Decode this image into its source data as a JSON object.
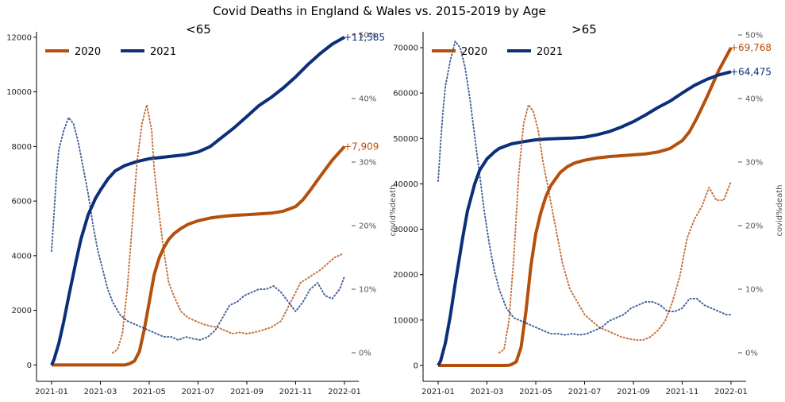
{
  "title": "Covid Deaths in England & Wales vs. 2015-2019 by Age",
  "colors": {
    "y2020": "#b5500c",
    "y2021": "#0c2f7a"
  },
  "chart_data": [
    {
      "type": "line",
      "title": "<65",
      "xlabel": "",
      "ylabel_right": "covid%death",
      "x_ticks": [
        "2021-01",
        "2021-03",
        "2021-05",
        "2021-07",
        "2021-09",
        "2021-11",
        "2022-01"
      ],
      "x_range_months": [
        0,
        12
      ],
      "ylim_left": [
        -600,
        12200
      ],
      "y_ticks_left": [
        "0",
        "2000",
        "4000",
        "6000",
        "8000",
        "10000",
        "12000"
      ],
      "ylim_right": [
        -0.045,
        0.505
      ],
      "y_ticks_right": [
        "0%",
        "10%",
        "20%",
        "30%",
        "40%",
        "50%"
      ],
      "legend": [
        "2020",
        "2021"
      ],
      "end_labels": {
        "y2020": "+7,909",
        "y2021": "+11,585"
      },
      "series": [
        {
          "name": "2020",
          "axis": "left",
          "style": "solid",
          "x": [
            0,
            2.0,
            2.4,
            2.6,
            2.8,
            3.0,
            3.2,
            3.4,
            3.6,
            3.8,
            4.0,
            4.2,
            4.4,
            4.6,
            4.8,
            5.0,
            5.3,
            5.6,
            6.0,
            6.5,
            7.0,
            7.5,
            8.0,
            8.5,
            9.0,
            9.5,
            10.0,
            10.3,
            10.6,
            11.0,
            11.5,
            12.0
          ],
          "values": [
            0,
            0,
            0,
            0,
            0,
            0,
            50,
            150,
            500,
            1300,
            2300,
            3300,
            3900,
            4300,
            4600,
            4800,
            5000,
            5150,
            5280,
            5380,
            5440,
            5480,
            5500,
            5530,
            5560,
            5630,
            5800,
            6050,
            6400,
            6900,
            7500,
            8000
          ]
        },
        {
          "name": "2021",
          "axis": "left",
          "style": "solid",
          "x": [
            0,
            0.1,
            0.3,
            0.5,
            0.7,
            1.0,
            1.2,
            1.5,
            1.8,
            2.0,
            2.3,
            2.6,
            3.0,
            3.5,
            4.0,
            4.5,
            5.0,
            5.5,
            6.0,
            6.5,
            7.0,
            7.5,
            8.0,
            8.5,
            9.0,
            9.5,
            10.0,
            10.5,
            11.0,
            11.5,
            12.0
          ],
          "values": [
            0,
            200,
            800,
            1600,
            2500,
            3800,
            4600,
            5500,
            6100,
            6400,
            6800,
            7100,
            7300,
            7450,
            7550,
            7600,
            7650,
            7700,
            7800,
            8000,
            8350,
            8700,
            9100,
            9500,
            9800,
            10150,
            10550,
            11000,
            11400,
            11750,
            12000
          ]
        },
        {
          "name": "2020 covid%death",
          "axis": "right",
          "style": "dotted",
          "x": [
            2.5,
            2.7,
            2.9,
            3.1,
            3.3,
            3.5,
            3.7,
            3.9,
            4.1,
            4.2,
            4.4,
            4.6,
            4.8,
            5.0,
            5.3,
            5.6,
            5.9,
            6.2,
            6.5,
            6.8,
            7.1,
            7.4,
            7.7,
            8.0,
            8.3,
            8.6,
            9.0,
            9.4,
            9.8,
            10.2,
            10.6,
            11.0,
            11.3,
            11.6,
            11.9
          ],
          "values": [
            0.0,
            0.005,
            0.03,
            0.1,
            0.2,
            0.3,
            0.36,
            0.39,
            0.35,
            0.29,
            0.22,
            0.16,
            0.11,
            0.09,
            0.065,
            0.055,
            0.05,
            0.045,
            0.042,
            0.04,
            0.035,
            0.03,
            0.032,
            0.03,
            0.032,
            0.035,
            0.04,
            0.05,
            0.08,
            0.11,
            0.12,
            0.13,
            0.14,
            0.15,
            0.155
          ]
        },
        {
          "name": "2021 covid%death",
          "axis": "right",
          "style": "dotted",
          "x": [
            0,
            0.1,
            0.2,
            0.3,
            0.5,
            0.7,
            0.9,
            1.1,
            1.3,
            1.5,
            1.7,
            1.9,
            2.1,
            2.3,
            2.5,
            2.8,
            3.1,
            3.4,
            3.7,
            4.0,
            4.3,
            4.6,
            4.9,
            5.2,
            5.5,
            5.8,
            6.1,
            6.4,
            6.7,
            7.0,
            7.3,
            7.6,
            7.9,
            8.2,
            8.5,
            8.8,
            9.1,
            9.4,
            9.7,
            10.0,
            10.3,
            10.6,
            10.9,
            11.2,
            11.5,
            11.8,
            12.0
          ],
          "values": [
            0.16,
            0.22,
            0.28,
            0.32,
            0.35,
            0.37,
            0.36,
            0.33,
            0.29,
            0.25,
            0.2,
            0.16,
            0.13,
            0.1,
            0.08,
            0.06,
            0.05,
            0.045,
            0.04,
            0.035,
            0.03,
            0.025,
            0.025,
            0.02,
            0.025,
            0.022,
            0.02,
            0.025,
            0.035,
            0.055,
            0.075,
            0.08,
            0.09,
            0.095,
            0.1,
            0.1,
            0.105,
            0.095,
            0.08,
            0.065,
            0.08,
            0.1,
            0.11,
            0.09,
            0.085,
            0.1,
            0.12
          ]
        }
      ]
    },
    {
      "type": "line",
      "title": ">65",
      "xlabel": "",
      "ylabel_right": "covid%death",
      "x_ticks": [
        "2021-01",
        "2021-03",
        "2021-05",
        "2021-07",
        "2021-09",
        "2021-11",
        "2022-01"
      ],
      "x_range_months": [
        0,
        12
      ],
      "ylim_left": [
        -3500,
        73500
      ],
      "y_ticks_left": [
        "0",
        "10000",
        "20000",
        "30000",
        "40000",
        "50000",
        "60000",
        "70000"
      ],
      "ylim_right": [
        -0.045,
        0.505
      ],
      "y_ticks_right": [
        "0%",
        "10%",
        "20%",
        "30%",
        "40%",
        "50%"
      ],
      "legend": [
        "2020",
        "2021"
      ],
      "end_labels": {
        "y2020": "+69,768",
        "y2021": "+64,475"
      },
      "series": [
        {
          "name": "2020",
          "axis": "left",
          "style": "solid",
          "x": [
            0,
            2.0,
            2.5,
            2.7,
            2.9,
            3.0,
            3.2,
            3.4,
            3.6,
            3.8,
            4.0,
            4.2,
            4.4,
            4.6,
            4.8,
            5.0,
            5.3,
            5.6,
            6.0,
            6.5,
            7.0,
            7.5,
            8.0,
            8.5,
            9.0,
            9.5,
            10.0,
            10.3,
            10.6,
            11.0,
            11.5,
            12.0
          ],
          "values": [
            0,
            0,
            0,
            0,
            50,
            200,
            800,
            4000,
            12000,
            22000,
            29000,
            33500,
            37000,
            39500,
            41000,
            42500,
            43800,
            44600,
            45200,
            45700,
            46000,
            46200,
            46400,
            46600,
            47000,
            47800,
            49500,
            51500,
            54500,
            59000,
            65000,
            70000
          ]
        },
        {
          "name": "2021",
          "axis": "left",
          "style": "solid",
          "x": [
            0,
            0.1,
            0.3,
            0.5,
            0.7,
            1.0,
            1.2,
            1.5,
            1.7,
            2.0,
            2.3,
            2.5,
            2.8,
            3.0,
            3.5,
            4.0,
            4.5,
            5.0,
            5.5,
            6.0,
            6.5,
            7.0,
            7.5,
            8.0,
            8.5,
            9.0,
            9.5,
            10.0,
            10.5,
            11.0,
            11.5,
            12.0
          ],
          "values": [
            0,
            1000,
            5000,
            11000,
            18000,
            28000,
            34000,
            40000,
            43000,
            45500,
            47000,
            47800,
            48400,
            48800,
            49300,
            49700,
            49900,
            50000,
            50100,
            50300,
            50800,
            51500,
            52500,
            53700,
            55200,
            56800,
            58200,
            60000,
            61700,
            63000,
            64000,
            64700
          ]
        },
        {
          "name": "2020 covid%death",
          "axis": "right",
          "style": "dotted",
          "x": [
            2.5,
            2.7,
            2.9,
            3.1,
            3.3,
            3.5,
            3.7,
            3.9,
            4.1,
            4.3,
            4.5,
            4.7,
            4.9,
            5.1,
            5.4,
            5.7,
            6.0,
            6.3,
            6.6,
            6.9,
            7.2,
            7.5,
            7.8,
            8.1,
            8.4,
            8.7,
            9.0,
            9.3,
            9.6,
            9.9,
            10.2,
            10.5,
            10.8,
            11.1,
            11.4,
            11.7,
            12.0
          ],
          "values": [
            0.0,
            0.005,
            0.05,
            0.15,
            0.28,
            0.36,
            0.39,
            0.38,
            0.35,
            0.3,
            0.26,
            0.22,
            0.18,
            0.14,
            0.1,
            0.08,
            0.06,
            0.05,
            0.04,
            0.035,
            0.03,
            0.025,
            0.022,
            0.02,
            0.02,
            0.025,
            0.035,
            0.05,
            0.08,
            0.12,
            0.18,
            0.21,
            0.23,
            0.26,
            0.24,
            0.24,
            0.27
          ]
        },
        {
          "name": "2021 covid%death",
          "axis": "right",
          "style": "dotted",
          "x": [
            0,
            0.1,
            0.2,
            0.3,
            0.5,
            0.7,
            0.9,
            1.1,
            1.3,
            1.5,
            1.7,
            1.9,
            2.1,
            2.3,
            2.5,
            2.8,
            3.1,
            3.4,
            3.7,
            4.0,
            4.3,
            4.6,
            4.9,
            5.2,
            5.5,
            5.8,
            6.1,
            6.4,
            6.7,
            7.0,
            7.3,
            7.6,
            7.9,
            8.2,
            8.5,
            8.8,
            9.1,
            9.4,
            9.7,
            10.0,
            10.3,
            10.6,
            10.9,
            11.2,
            11.5,
            11.8,
            12.0
          ],
          "values": [
            0.27,
            0.33,
            0.38,
            0.42,
            0.46,
            0.49,
            0.48,
            0.45,
            0.4,
            0.34,
            0.28,
            0.22,
            0.17,
            0.13,
            0.1,
            0.07,
            0.055,
            0.05,
            0.045,
            0.04,
            0.035,
            0.03,
            0.03,
            0.028,
            0.03,
            0.028,
            0.03,
            0.035,
            0.04,
            0.05,
            0.055,
            0.06,
            0.07,
            0.075,
            0.08,
            0.08,
            0.075,
            0.065,
            0.065,
            0.07,
            0.085,
            0.085,
            0.075,
            0.07,
            0.065,
            0.06,
            0.06
          ]
        }
      ]
    }
  ]
}
